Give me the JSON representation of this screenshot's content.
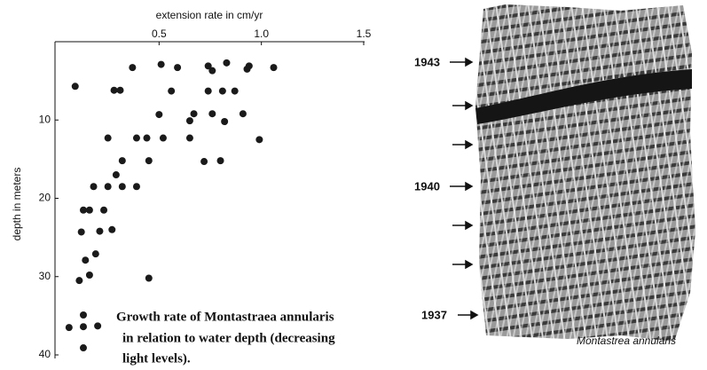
{
  "chart_data": {
    "type": "scatter",
    "x_label": "extension rate in cm/yr",
    "y_label": "depth in meters",
    "annotation": [
      "Growth rate of Montastraea annularis",
      "in relation to water depth (decreasing",
      "light levels)."
    ],
    "color": "#1a1a1a",
    "xlim": [
      0,
      1.5
    ],
    "xticks": [
      0.5,
      {
        "value": 1,
        "label": "1.0"
      },
      1.5
    ],
    "ylim": [
      0,
      40
    ],
    "yticks": [
      10,
      20,
      30,
      40
    ],
    "x": [
      0.09,
      0.37,
      0.51,
      0.59,
      0.74,
      0.76,
      0.83,
      0.94,
      0.93,
      1.06,
      0.28,
      0.31,
      0.56,
      0.74,
      0.81,
      0.87,
      0.5,
      0.67,
      0.65,
      0.76,
      0.82,
      0.91,
      0.25,
      0.39,
      0.44,
      0.52,
      0.65,
      0.99,
      0.32,
      0.45,
      0.72,
      0.8,
      0.29,
      0.18,
      0.25,
      0.32,
      0.39,
      0.13,
      0.16,
      0.23,
      0.12,
      0.21,
      0.27,
      0.19,
      0.14,
      0.16,
      0.11,
      0.45,
      0.13,
      0.06,
      0.13,
      0.2,
      0.13
    ],
    "values": [
      5.7,
      3.3,
      2.9,
      3.3,
      3.1,
      3.7,
      2.7,
      3.1,
      3.5,
      3.3,
      6.2,
      6.2,
      6.3,
      6.3,
      6.3,
      6.3,
      9.3,
      9.2,
      10.1,
      9.2,
      10.2,
      9.2,
      12.3,
      12.3,
      12.3,
      12.3,
      12.3,
      12.5,
      15.2,
      15.2,
      15.3,
      15.2,
      17,
      18.5,
      18.5,
      18.5,
      18.5,
      21.5,
      21.5,
      21.5,
      24.3,
      24.2,
      24,
      27.1,
      27.9,
      29.8,
      30.5,
      30.2,
      34.9,
      36.5,
      36.4,
      36.3,
      39.1
    ]
  },
  "photo": {
    "year_labels": [
      "1943",
      "1940",
      "1937"
    ],
    "caption": "Montastrea annularis"
  }
}
